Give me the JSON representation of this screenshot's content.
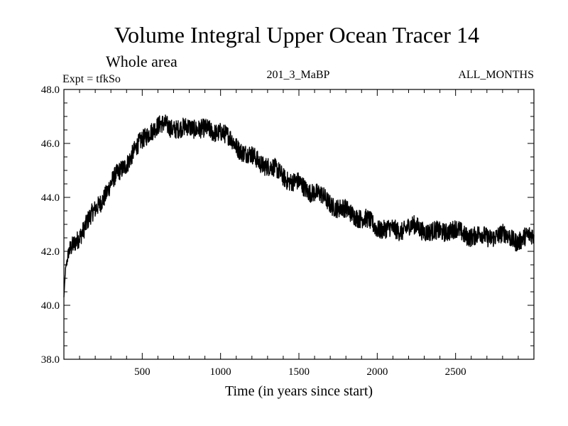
{
  "chart_data": {
    "type": "line",
    "title": "Volume Integral Upper Ocean Tracer 14",
    "subtitle": "Whole area",
    "experiment": "Expt = tfkSo",
    "run_label": "201_3_MaBP",
    "period_label": "ALL_MONTHS",
    "xlabel": "Time (in years since start)",
    "ylabel": "",
    "xlim": [
      0,
      3000
    ],
    "ylim": [
      38.0,
      48.0
    ],
    "x_ticks": [
      500,
      1000,
      1500,
      2000,
      2500
    ],
    "x_tick_labels": [
      "500",
      "1000",
      "1500",
      "2000",
      "2500"
    ],
    "y_ticks": [
      38.0,
      40.0,
      42.0,
      44.0,
      46.0,
      48.0
    ],
    "y_tick_labels": [
      "38.0",
      "40.0",
      "42.0",
      "44.0",
      "46.0",
      "48.0"
    ],
    "grid": false,
    "series": [
      {
        "name": "Volume Integral Upper Ocean Tracer 14",
        "color": "#000000",
        "noise_amplitude": 0.35,
        "x": [
          0,
          10,
          30,
          60,
          100,
          150,
          200,
          250,
          300,
          350,
          400,
          450,
          500,
          550,
          600,
          650,
          700,
          750,
          800,
          850,
          900,
          950,
          1000,
          1050,
          1100,
          1150,
          1200,
          1250,
          1300,
          1350,
          1400,
          1450,
          1500,
          1550,
          1600,
          1650,
          1700,
          1750,
          1800,
          1850,
          1900,
          1950,
          2000,
          2050,
          2100,
          2150,
          2200,
          2250,
          2300,
          2350,
          2400,
          2450,
          2500,
          2550,
          2600,
          2650,
          2700,
          2750,
          2800,
          2850,
          2900,
          2950,
          3000
        ],
        "y": [
          40.3,
          41.3,
          41.9,
          42.2,
          42.6,
          43.1,
          43.5,
          44.0,
          44.5,
          44.9,
          45.3,
          45.7,
          46.1,
          46.5,
          46.6,
          46.7,
          46.6,
          46.5,
          46.6,
          46.6,
          46.5,
          46.4,
          46.5,
          46.2,
          45.9,
          45.7,
          45.5,
          45.3,
          45.2,
          45.0,
          44.8,
          44.6,
          44.5,
          44.3,
          44.2,
          44.0,
          43.8,
          43.6,
          43.5,
          43.4,
          43.2,
          43.1,
          42.9,
          42.8,
          42.8,
          42.8,
          42.9,
          42.9,
          42.8,
          42.7,
          42.7,
          42.8,
          42.8,
          42.6,
          42.6,
          42.6,
          42.5,
          42.6,
          42.6,
          42.5,
          42.4,
          42.5,
          42.6
        ]
      }
    ]
  }
}
